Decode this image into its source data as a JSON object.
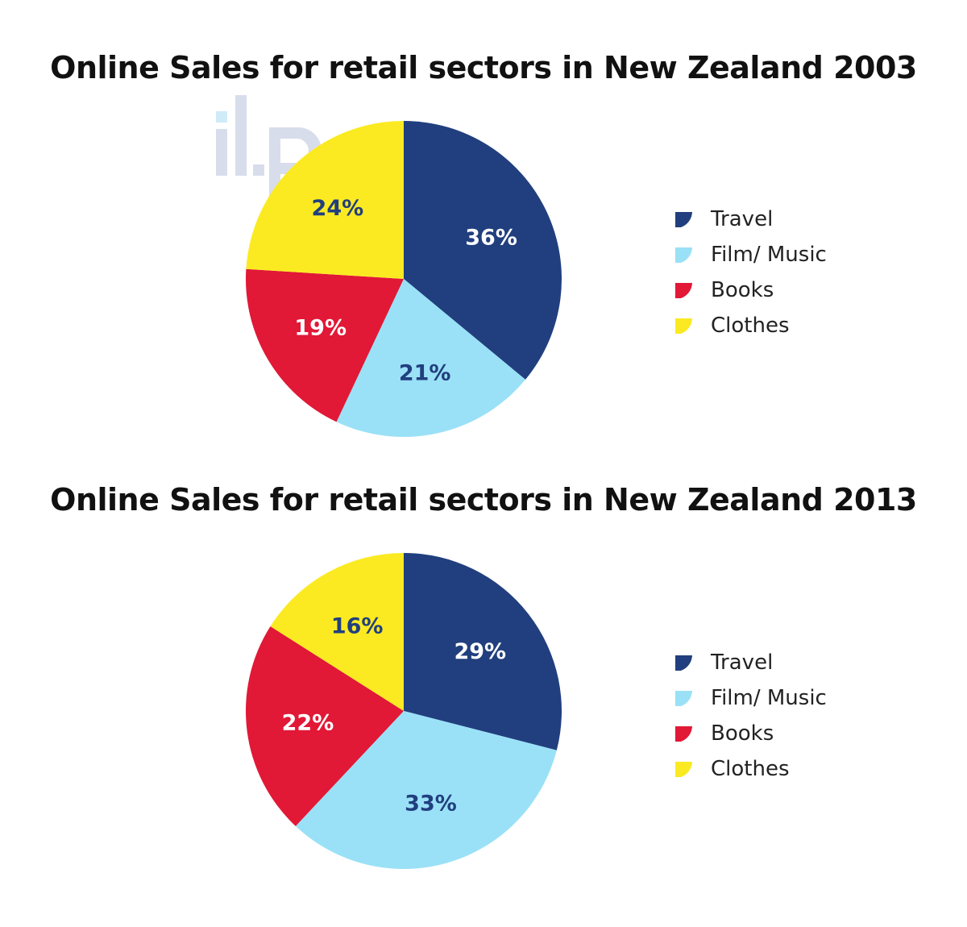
{
  "watermark": "ilp",
  "chart_data": [
    {
      "type": "pie",
      "title": "Online Sales for retail sectors in New Zealand 2003",
      "unit": "%",
      "categories": [
        "Travel",
        "Film/ Music",
        "Books",
        "Clothes"
      ],
      "values": [
        36,
        21,
        19,
        24
      ],
      "labels": [
        "36%",
        "21%",
        "19%",
        "24%"
      ],
      "colors": [
        "#213f7e",
        "#9ae1f7",
        "#e11836",
        "#fbea22"
      ],
      "label_colors": [
        "#ffffff",
        "#213f7e",
        "#ffffff",
        "#213f7e"
      ],
      "start": "12 o'clock",
      "direction": "clockwise",
      "legend": {
        "position": "right",
        "items": [
          "Travel",
          "Film/ Music",
          "Books",
          "Clothes"
        ]
      }
    },
    {
      "type": "pie",
      "title": "Online Sales for retail sectors in New Zealand 2013",
      "unit": "%",
      "categories": [
        "Travel",
        "Film/ Music",
        "Books",
        "Clothes"
      ],
      "values": [
        29,
        33,
        22,
        16
      ],
      "labels": [
        "29%",
        "33%",
        "22%",
        "16%"
      ],
      "colors": [
        "#213f7e",
        "#9ae1f7",
        "#e11836",
        "#fbea22"
      ],
      "label_colors": [
        "#ffffff",
        "#213f7e",
        "#ffffff",
        "#213f7e"
      ],
      "start": "12 o'clock",
      "direction": "clockwise",
      "legend": {
        "position": "right",
        "items": [
          "Travel",
          "Film/ Music",
          "Books",
          "Clothes"
        ]
      }
    }
  ]
}
